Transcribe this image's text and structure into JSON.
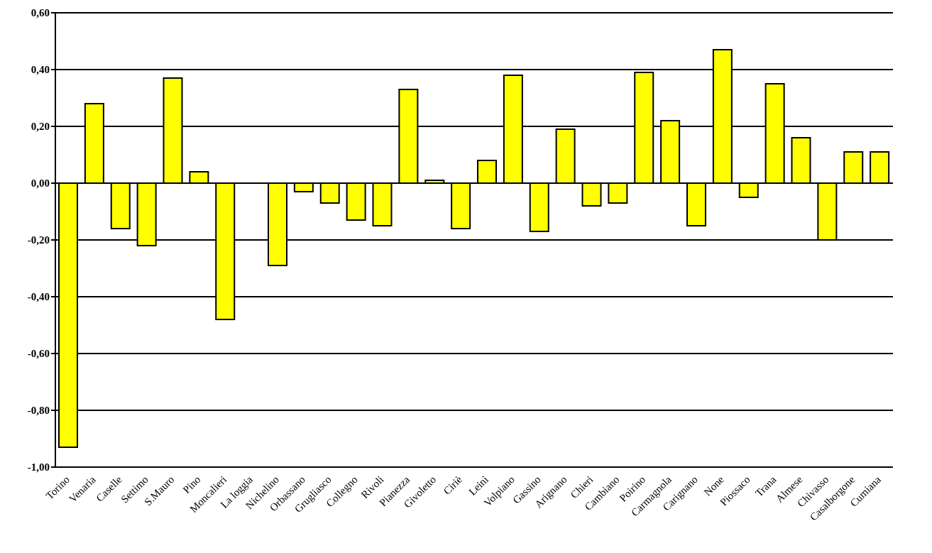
{
  "chart_data": {
    "type": "bar",
    "categories": [
      "Torino",
      "Venaria",
      "Caselle",
      "Settimo",
      "S.Mauro",
      "Pino",
      "Moncalieri",
      "La loggia",
      "Nichelino",
      "Orbassano",
      "Grugliasco",
      "Collegno",
      "Rivoli",
      "Pianezza",
      "Givoletto",
      "Ciriè",
      "Leinì",
      "Volpiano",
      "Gassino",
      "Arignano",
      "Chieri",
      "Cambiano",
      "Poirino",
      "Carmagnola",
      "Carignano",
      "None",
      "Piossaco",
      "Trana",
      "Almese",
      "Chivasso",
      "Casalborgone",
      "Cumiana"
    ],
    "values": [
      -0.93,
      0.28,
      -0.16,
      -0.22,
      0.37,
      0.04,
      -0.48,
      null,
      -0.29,
      -0.03,
      -0.07,
      -0.13,
      -0.15,
      0.33,
      0.01,
      -0.16,
      0.08,
      0.38,
      -0.17,
      0.19,
      -0.08,
      -0.07,
      0.39,
      0.22,
      -0.15,
      0.47,
      -0.05,
      0.35,
      0.16,
      -0.2,
      0.11,
      0.11
    ],
    "color": "#ffff00",
    "ylim": [
      -1,
      0.6
    ],
    "yticks": [
      {
        "value": -1,
        "label": "-1,00"
      },
      {
        "value": -0.8,
        "label": "-0,80"
      },
      {
        "value": -0.6,
        "label": "-0,60"
      },
      {
        "value": -0.4,
        "label": "-0,40"
      },
      {
        "value": -0.2,
        "label": "-0,20"
      },
      {
        "value": 0,
        "label": "0,00"
      },
      {
        "value": 0.2,
        "label": "0,20"
      },
      {
        "value": 0.4,
        "label": "0,40"
      },
      {
        "value": 0.6,
        "label": "0,60"
      }
    ],
    "grid": "y"
  }
}
